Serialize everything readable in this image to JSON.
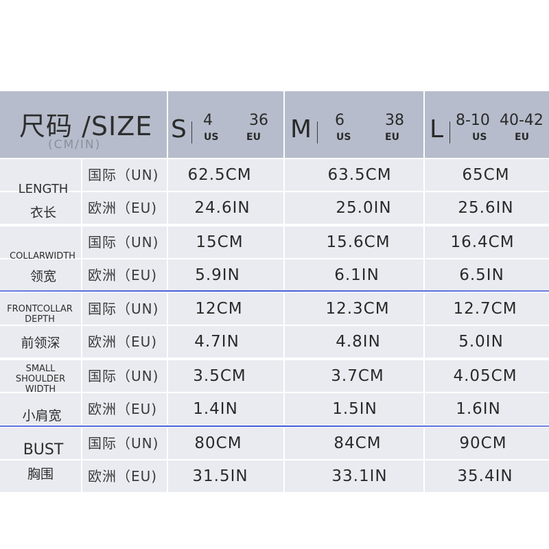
{
  "header": {
    "title": "尺码 /SIZE",
    "subtitle": "(CM/IN)",
    "sizes": [
      {
        "letter": "S",
        "us_num": "4",
        "us_label": "US",
        "eu_num": "36",
        "eu_label": "EU"
      },
      {
        "letter": "M",
        "us_num": "6",
        "us_label": "US",
        "eu_num": "38",
        "eu_label": "EU"
      },
      {
        "letter": "L",
        "us_num": "8-10",
        "us_label": "US",
        "eu_num": "40-42",
        "eu_label": "EU"
      }
    ]
  },
  "rows": [
    {
      "en": "LENGTH",
      "zh": "衣长",
      "un_label": "国际（UN)",
      "eu_label": "欧洲（EU)",
      "un": [
        "62.5CM",
        "63.5CM",
        "65CM"
      ],
      "eu": [
        "24.6IN",
        "25.0IN",
        "25.6IN"
      ]
    },
    {
      "en": "COLLARWIDTH",
      "zh": "领宽",
      "un_label": "国际（UN)",
      "eu_label": "欧洲（EU)",
      "un": [
        "15CM",
        "15.6CM",
        "16.4CM"
      ],
      "eu": [
        "5.9IN",
        "6.1IN",
        "6.5IN"
      ]
    },
    {
      "en": "FRONTCOLLAR DEPTH",
      "zh": "前领深",
      "un_label": "国际（UN)",
      "eu_label": "欧洲（EU)",
      "un": [
        "12CM",
        "12.3CM",
        "12.7CM"
      ],
      "eu": [
        "4.7IN",
        "4.8IN",
        "5.0IN"
      ]
    },
    {
      "en": "SMALL SHOULDER WIDTH",
      "zh": "小肩宽",
      "un_label": "国际（UN)",
      "eu_label": "欧洲（EU)",
      "un": [
        "3.5CM",
        "3.7CM",
        "4.05CM"
      ],
      "eu": [
        "1.4IN",
        "1.5IN",
        "1.6IN"
      ]
    },
    {
      "en": "BUST",
      "zh": "胸围",
      "un_label": "国际（UN)",
      "eu_label": "欧洲（EU)",
      "un": [
        "80CM",
        "84CM",
        "90CM"
      ],
      "eu": [
        "31.5IN",
        "33.1IN",
        "35.4IN"
      ]
    }
  ]
}
